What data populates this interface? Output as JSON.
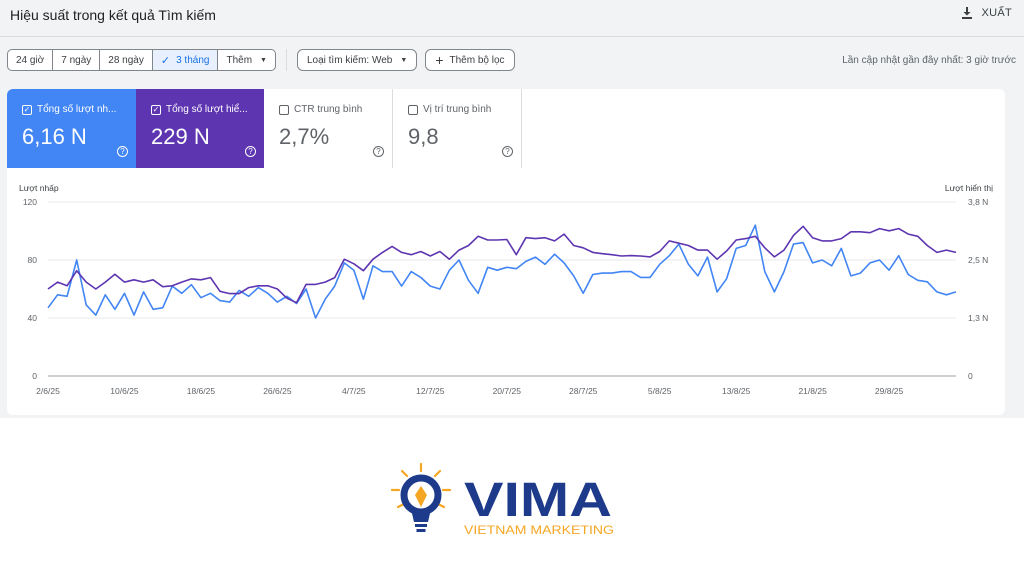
{
  "header": {
    "title": "Hiệu suất trong kết quả Tìm kiếm",
    "export_label": "XUẤT"
  },
  "filters": {
    "date_options": [
      "24 giờ",
      "7 ngày",
      "28 ngày",
      "3 tháng",
      "Thêm"
    ],
    "active_index": 3,
    "search_type": "Loại tìm kiếm: Web",
    "add_filter": "Thêm bộ lọc",
    "last_updated": "Lần cập nhật gần đây nhất: 3 giờ trước"
  },
  "metrics": [
    {
      "label": "Tổng số lượt nh...",
      "value": "6,16 N",
      "checked": true
    },
    {
      "label": "Tổng số lượt hiể...",
      "value": "229 N",
      "checked": true
    },
    {
      "label": "CTR trung bình",
      "value": "2,7%",
      "checked": false
    },
    {
      "label": "Vị trí trung bình",
      "value": "9,8",
      "checked": false
    }
  ],
  "chart_data": {
    "type": "line",
    "left_axis_label": "Lượt nhấp",
    "right_axis_label": "Lượt hiển thị",
    "left_ticks": [
      "120",
      "80",
      "40",
      "0"
    ],
    "right_ticks": [
      "3,8 N",
      "2,5 N",
      "1,3 N",
      "0"
    ],
    "ylim_left": [
      0,
      120
    ],
    "ylim_right": [
      0,
      3.8
    ],
    "x_tick_labels": [
      "2/6/25",
      "10/6/25",
      "18/6/25",
      "26/6/25",
      "4/7/25",
      "12/7/25",
      "20/7/25",
      "28/7/25",
      "5/8/25",
      "13/8/25",
      "21/8/25",
      "29/8/25"
    ],
    "x_tick_day_index": [
      0,
      8,
      16,
      24,
      32,
      40,
      48,
      56,
      64,
      72,
      80,
      88
    ],
    "grid": true,
    "series": [
      {
        "name": "Tổng số lượt nhấp",
        "axis": "left",
        "color": "#4285f4",
        "values": [
          47,
          56,
          55,
          80,
          49,
          42,
          56,
          46,
          57,
          42,
          58,
          46,
          47,
          62,
          57,
          63,
          54,
          57,
          52,
          51,
          59,
          55,
          61,
          57,
          51,
          55,
          50,
          60,
          40,
          53,
          62,
          78,
          73,
          53,
          76,
          72,
          72,
          62,
          72,
          68,
          62,
          60,
          73,
          80,
          66,
          57,
          75,
          73,
          75,
          74,
          79,
          82,
          77,
          84,
          78,
          69,
          57,
          70,
          71,
          71,
          72,
          72,
          68,
          68,
          77,
          83,
          91,
          77,
          69,
          82,
          58,
          67,
          88,
          90,
          104,
          72,
          58,
          72,
          91,
          92,
          78,
          80,
          76,
          88,
          69,
          71,
          78,
          80,
          73,
          83,
          70,
          66,
          65,
          58,
          56,
          58
        ]
      },
      {
        "name": "Tổng số lượt hiển thị",
        "axis": "right",
        "color": "#5e35b1",
        "values": [
          1.9,
          2.05,
          1.97,
          2.3,
          2.05,
          1.9,
          2.05,
          2.22,
          2.05,
          2.1,
          2.05,
          2.1,
          1.95,
          1.97,
          2.05,
          2.12,
          2.1,
          2.15,
          1.85,
          1.8,
          1.8,
          1.93,
          1.97,
          1.97,
          1.9,
          1.7,
          1.6,
          2.0,
          2.0,
          2.05,
          2.15,
          2.55,
          2.45,
          2.3,
          2.55,
          2.7,
          2.83,
          2.7,
          2.65,
          2.72,
          2.62,
          2.72,
          2.55,
          2.75,
          2.85,
          3.05,
          2.97,
          2.97,
          2.98,
          2.65,
          3.02,
          3.0,
          3.02,
          2.95,
          3.1,
          2.85,
          2.8,
          2.7,
          2.67,
          2.65,
          2.62,
          2.63,
          2.62,
          2.6,
          2.72,
          2.95,
          2.9,
          2.85,
          2.75,
          2.75,
          2.55,
          2.73,
          2.97,
          3.0,
          3.05,
          2.8,
          2.6,
          2.75,
          3.07,
          3.27,
          3.02,
          2.95,
          2.95,
          3.0,
          3.15,
          3.15,
          3.13,
          3.22,
          3.17,
          3.22,
          3.1,
          3.05,
          2.85,
          2.7,
          2.75,
          2.7
        ]
      }
    ]
  },
  "logo": {
    "brand": "VIMA",
    "tagline": "VIETNAM MARKETING",
    "primary_color": "#1e3a8a",
    "accent_color": "#f5a623"
  }
}
